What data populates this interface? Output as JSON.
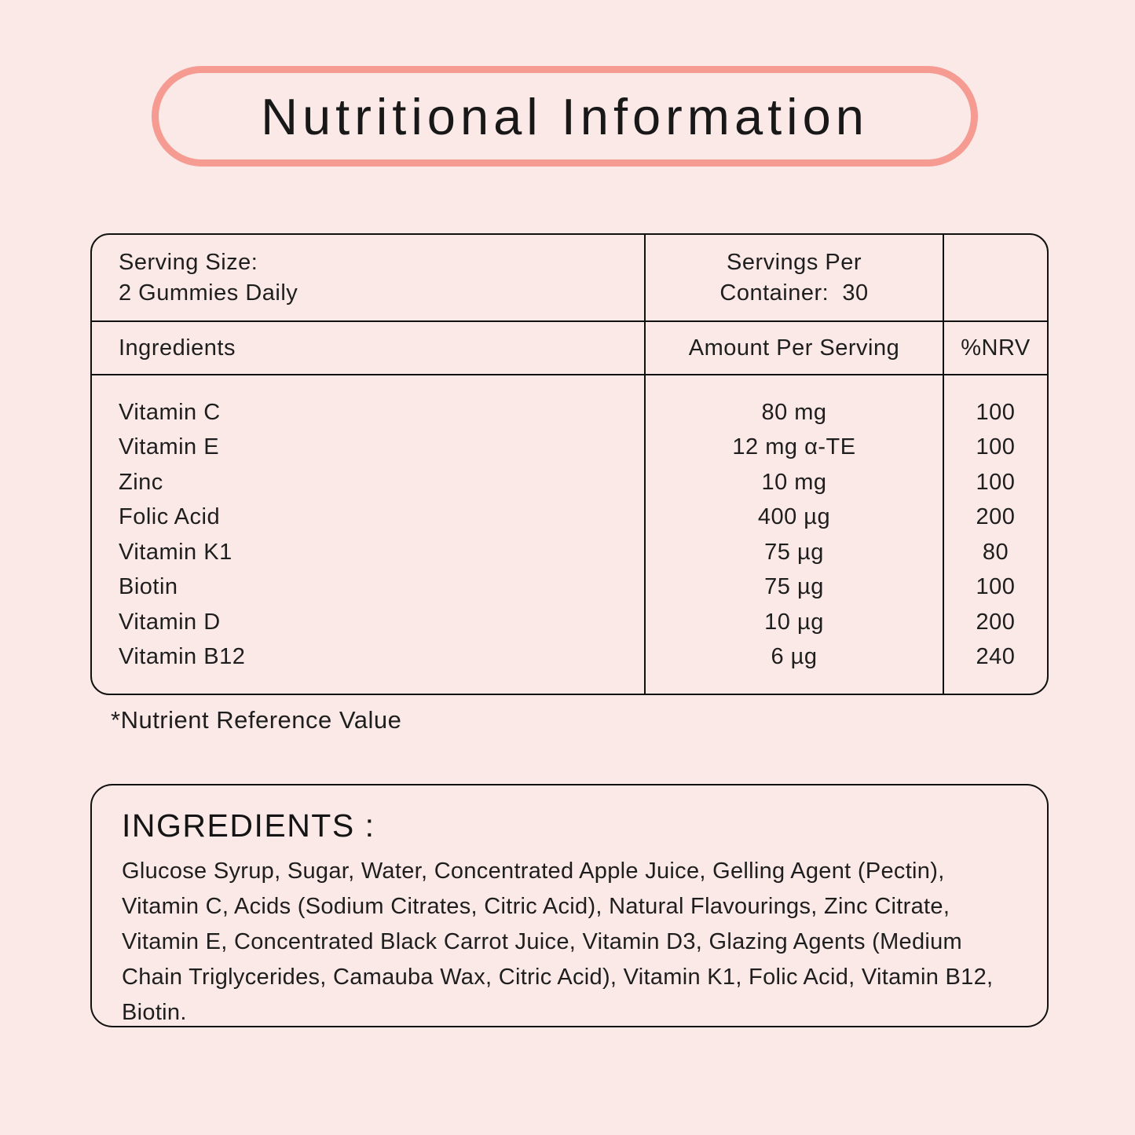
{
  "title": "Nutritional Information",
  "colors": {
    "background": "#FBE9E7",
    "pill_border": "#F69B92",
    "text": "#1E1E1E",
    "rule": "#111111"
  },
  "table": {
    "serving_size_line1": "Serving Size:",
    "serving_size_line2": "2 Gummies Daily",
    "servings_per_line1": "Servings Per",
    "servings_per_line2": "Container:  30",
    "headers": {
      "ingredients": "Ingredients",
      "amount": "Amount Per Serving",
      "nrv": "%NRV"
    },
    "rows": [
      {
        "name": "Vitamin C",
        "amount": "80 mg",
        "nrv": "100"
      },
      {
        "name": "Vitamin E",
        "amount": "12 mg α-TE",
        "nrv": "100"
      },
      {
        "name": "Zinc",
        "amount": "10 mg",
        "nrv": "100"
      },
      {
        "name": "Folic Acid",
        "amount": "400 µg",
        "nrv": "200"
      },
      {
        "name": "Vitamin K1",
        "amount": "75 µg",
        "nrv": "80"
      },
      {
        "name": "Biotin",
        "amount": "75 µg",
        "nrv": "100"
      },
      {
        "name": "Vitamin D",
        "amount": "10 µg",
        "nrv": "200"
      },
      {
        "name": "Vitamin B12",
        "amount": "6 µg",
        "nrv": "240"
      }
    ]
  },
  "footnote": "*Nutrient Reference Value",
  "ingredients_panel": {
    "heading": "INGREDIENTS :",
    "text": "Glucose Syrup, Sugar, Water, Concentrated Apple Juice, Gelling Agent (Pectin), Vitamin C, Acids (Sodium Citrates, Citric Acid), Natural Flavourings, Zinc Citrate, Vitamin E, Concentrated Black Carrot Juice, Vitamin D3, Glazing Agents (Medium Chain Triglycerides, Camauba Wax, Citric Acid), Vitamin K1, Folic Acid, Vitamin B12, Biotin."
  }
}
